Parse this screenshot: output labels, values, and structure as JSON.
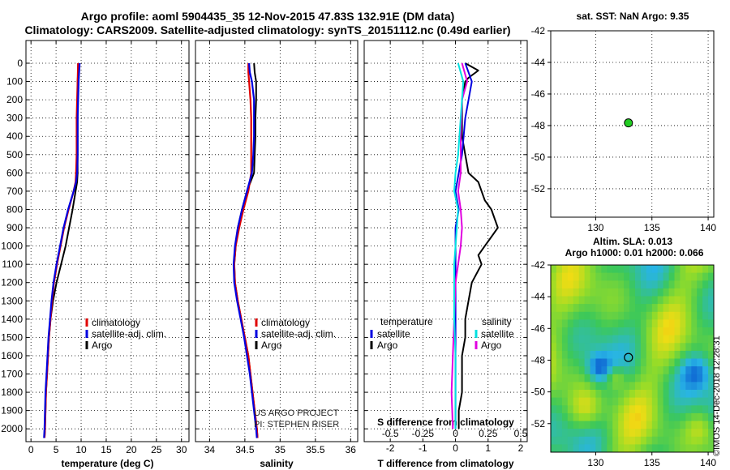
{
  "title_line1": "Argo profile: aoml 5904435_35 12-Nov-2015 47.83S 132.91E (DM data)",
  "title_line2": "Climatology: CARS2009. Satellite-adjusted climatology: synTS_20151112.nc (0.49d earlier)",
  "sst_title": "sat. SST: NaN Argo: 9.35",
  "sla_title": "Altim. SLA: 0.013",
  "h_title": "Argo h1000: 0.01 h2000: 0.066",
  "credit": "©IMOS 14-Dec-2018 12:28:31",
  "watermark_line1": "US ARGO PROJECT",
  "watermark_line2": "PI: STEPHEN RISER",
  "colors": {
    "climatology": "#e00000",
    "satellite": "#0000e0",
    "argo": "#000000",
    "satellite_s": "#00e0e0",
    "argo_s": "#e000e0",
    "point": "#22cc22"
  },
  "chart_data": [
    {
      "type": "line",
      "name": "temperature",
      "xlabel": "temperature (deg C)",
      "ylabel": "",
      "xlim": [
        -1,
        31.5
      ],
      "ylim": [
        0,
        2070
      ],
      "xticks": [
        "0",
        "5",
        "10",
        "15",
        "20",
        "25",
        "30"
      ],
      "yticks": [
        "0",
        "100",
        "200",
        "300",
        "400",
        "500",
        "600",
        "700",
        "800",
        "900",
        "1000",
        "1100",
        "1200",
        "1300",
        "1400",
        "1500",
        "1600",
        "1700",
        "1800",
        "1900",
        "2000"
      ],
      "legend": [
        "climatology",
        "satellite-adj. clim.",
        "Argo"
      ],
      "series": [
        {
          "name": "climatology",
          "depth": [
            0,
            100,
            200,
            300,
            400,
            500,
            600,
            650,
            700,
            800,
            900,
            1000,
            1100,
            1200,
            1300,
            1400,
            1500,
            1600,
            1700,
            1800,
            1900,
            2000,
            2050
          ],
          "values": [
            9.4,
            9.3,
            9.2,
            9.1,
            9.1,
            9.1,
            9.0,
            8.9,
            8.5,
            7.5,
            6.6,
            5.9,
            5.2,
            4.6,
            4.2,
            3.9,
            3.6,
            3.4,
            3.2,
            3.0,
            2.9,
            2.8,
            2.7
          ]
        },
        {
          "name": "satellite-adj. clim.",
          "depth": [
            0,
            100,
            200,
            300,
            400,
            500,
            600,
            650,
            700,
            800,
            900,
            1000,
            1100,
            1200,
            1300,
            1400,
            1500,
            1600,
            1700,
            1800,
            1900,
            2000,
            2050
          ],
          "values": [
            9.7,
            9.5,
            9.4,
            9.3,
            9.3,
            9.3,
            9.2,
            9.0,
            8.5,
            7.4,
            6.5,
            5.8,
            5.1,
            4.5,
            4.1,
            3.8,
            3.5,
            3.3,
            3.1,
            2.9,
            2.8,
            2.7,
            2.6
          ]
        },
        {
          "name": "Argo",
          "depth": [
            0,
            50,
            100,
            200,
            300,
            400,
            500,
            600,
            650,
            700,
            800,
            900,
            1000,
            1100,
            1200,
            1300,
            1400,
            1500,
            1600,
            1700,
            1800,
            1900,
            2000,
            2050
          ],
          "values": [
            9.4,
            9.4,
            9.3,
            9.3,
            9.3,
            9.3,
            9.3,
            9.3,
            9.2,
            8.9,
            8.3,
            7.6,
            6.9,
            6.0,
            5.1,
            4.4,
            3.9,
            3.6,
            3.4,
            3.2,
            3.0,
            2.9,
            2.8,
            2.7
          ]
        }
      ]
    },
    {
      "type": "line",
      "name": "salinity",
      "xlabel": "salinity",
      "xlim": [
        33.8,
        36.1
      ],
      "ylim": [
        0,
        2070
      ],
      "xticks": [
        "34",
        "34.5",
        "35",
        "35.5",
        "36"
      ],
      "legend": [
        "climatology",
        "satellite-adj. clim.",
        "Argo"
      ],
      "series": [
        {
          "name": "climatology",
          "depth": [
            0,
            50,
            100,
            200,
            300,
            400,
            500,
            600,
            700,
            800,
            900,
            1000,
            1100,
            1200,
            1300,
            1400,
            1500,
            1600,
            1700,
            1800,
            1900,
            2000,
            2050
          ],
          "values": [
            34.55,
            34.55,
            34.56,
            34.58,
            34.59,
            34.59,
            34.59,
            34.59,
            34.55,
            34.48,
            34.42,
            34.37,
            34.35,
            34.36,
            34.4,
            34.45,
            34.5,
            34.55,
            34.58,
            34.61,
            34.64,
            34.67,
            34.68
          ]
        },
        {
          "name": "satellite-adj. clim.",
          "depth": [
            0,
            50,
            100,
            200,
            300,
            400,
            500,
            600,
            700,
            800,
            900,
            1000,
            1100,
            1200,
            1300,
            1400,
            1500,
            1600,
            1700,
            1800,
            1900,
            2000,
            2050
          ],
          "values": [
            34.56,
            34.57,
            34.6,
            34.63,
            34.63,
            34.63,
            34.62,
            34.6,
            34.53,
            34.46,
            34.4,
            34.36,
            34.34,
            34.35,
            34.39,
            34.44,
            34.49,
            34.53,
            34.57,
            34.6,
            34.63,
            34.66,
            34.67
          ]
        },
        {
          "name": "Argo",
          "depth": [
            0,
            50,
            100,
            200,
            300,
            400,
            500,
            600,
            700,
            800,
            900,
            1000,
            1100,
            1200,
            1300,
            1400,
            1500,
            1600,
            1700,
            1800,
            1900,
            2000,
            2050
          ],
          "values": [
            34.63,
            34.64,
            34.66,
            34.66,
            34.65,
            34.65,
            34.64,
            34.63,
            34.53,
            34.46,
            34.4,
            34.37,
            34.35,
            34.36,
            34.4,
            34.45,
            34.5,
            34.55,
            34.58,
            34.61,
            34.64,
            34.67,
            34.68
          ]
        }
      ]
    },
    {
      "type": "line",
      "name": "difference",
      "xlabel": "T difference from climatology",
      "xlabel_top": "S difference from climatology",
      "xlim": [
        -2.8,
        2.2
      ],
      "ylim": [
        0,
        2070
      ],
      "xticks": [
        "-2",
        "-1",
        "0",
        "1",
        "2"
      ],
      "xticks_s": [
        "-0.5",
        "-0.25",
        "0",
        "0.25",
        "0.5"
      ],
      "legend_t_heading": "temperature",
      "legend_s_heading": "salinity",
      "legend_t": [
        "satellite",
        "Argo"
      ],
      "legend_s": [
        "satellite",
        "Argo"
      ],
      "series": [
        {
          "name": "T satellite",
          "depth": [
            0,
            100,
            300,
            500,
            600,
            700,
            800,
            900,
            1000,
            1100,
            1200,
            1400,
            1600,
            1800,
            2000
          ],
          "values": [
            0.3,
            0.5,
            0.3,
            0.2,
            0.1,
            0.0,
            0.1,
            0.0,
            0.0,
            0.0,
            0.0,
            0.0,
            0.0,
            0.0,
            0.0
          ]
        },
        {
          "name": "T Argo",
          "depth": [
            0,
            40,
            80,
            100,
            200,
            300,
            400,
            500,
            600,
            650,
            700,
            750,
            800,
            850,
            900,
            950,
            1000,
            1050,
            1100,
            1200,
            1300,
            1400,
            1500,
            1600,
            1700,
            1800,
            1900,
            2000
          ],
          "values": [
            0.3,
            0.7,
            0.4,
            0.3,
            0.2,
            0.2,
            0.2,
            0.3,
            0.4,
            0.7,
            0.8,
            0.9,
            1.1,
            1.2,
            1.3,
            1.1,
            0.9,
            0.7,
            0.8,
            0.5,
            0.4,
            0.3,
            0.3,
            0.2,
            0.2,
            0.2,
            0.1,
            0.1
          ]
        },
        {
          "name": "S satellite",
          "depth": [
            0,
            100,
            300,
            500,
            600,
            700,
            800,
            900,
            1000,
            1100,
            1200,
            1400,
            1600,
            1800,
            2000
          ],
          "values": [
            0.02,
            0.06,
            0.04,
            0.02,
            0.0,
            -0.01,
            0.02,
            0.01,
            0.0,
            -0.01,
            -0.01,
            -0.01,
            0.0,
            0.0,
            0.0
          ]
        },
        {
          "name": "S Argo",
          "depth": [
            0,
            100,
            200,
            400,
            600,
            700,
            800,
            900,
            1000,
            1200,
            1400,
            1600,
            1800,
            2000
          ],
          "values": [
            0.05,
            0.09,
            0.05,
            0.04,
            0.04,
            0.02,
            0.04,
            0.05,
            0.04,
            0.0,
            -0.01,
            -0.02,
            -0.03,
            -0.02
          ]
        }
      ]
    },
    {
      "type": "scatter",
      "name": "sst-map",
      "xlim": [
        126,
        140.5
      ],
      "ylim": [
        -53.8,
        -42
      ],
      "xticks": [
        "130",
        "135",
        "140"
      ],
      "yticks": [
        "-42",
        "-44",
        "-46",
        "-48",
        "-50",
        "-52"
      ],
      "point": {
        "lon": 132.91,
        "lat": -47.83
      }
    },
    {
      "type": "heatmap",
      "name": "sla-map",
      "xlim": [
        126,
        140.5
      ],
      "ylim": [
        -53.8,
        -42
      ],
      "xticks": [
        "130",
        "135",
        "140"
      ],
      "yticks": [
        "-42",
        "-44",
        "-46",
        "-48",
        "-50",
        "-52"
      ],
      "point": {
        "lon": 132.91,
        "lat": -47.83
      }
    }
  ]
}
